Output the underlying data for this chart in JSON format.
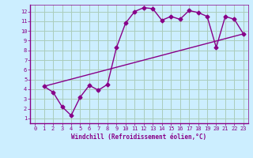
{
  "xlabel": "Windchill (Refroidissement éolien,°C)",
  "bg_color": "#cceeff",
  "line_color": "#880088",
  "grid_color": "#aaccbb",
  "xlim": [
    0,
    23
  ],
  "ylim": [
    1,
    12
  ],
  "yticks": [
    1,
    2,
    3,
    4,
    5,
    6,
    7,
    8,
    9,
    10,
    11,
    12
  ],
  "xticks": [
    0,
    1,
    2,
    3,
    4,
    5,
    6,
    7,
    8,
    9,
    10,
    11,
    12,
    13,
    14,
    15,
    16,
    17,
    18,
    19,
    20,
    21,
    22,
    23
  ],
  "curve1_x": [
    1,
    2,
    3,
    4,
    5,
    6,
    7,
    8,
    9,
    10,
    11,
    12,
    13,
    14,
    15,
    16,
    17,
    18,
    19,
    20,
    21,
    22,
    23
  ],
  "curve1_y": [
    4.3,
    3.7,
    2.2,
    1.3,
    3.2,
    4.4,
    3.9,
    4.5,
    8.3,
    10.8,
    12.0,
    12.4,
    12.3,
    11.1,
    11.5,
    11.2,
    12.1,
    11.9,
    11.5,
    8.3,
    11.5,
    11.2,
    9.7
  ],
  "curve2_x": [
    1,
    23
  ],
  "curve2_y": [
    4.3,
    9.7
  ],
  "marker": "D",
  "markersize": 2.5,
  "linewidth": 1.0,
  "tick_fontsize": 5.0,
  "xlabel_fontsize": 5.5
}
